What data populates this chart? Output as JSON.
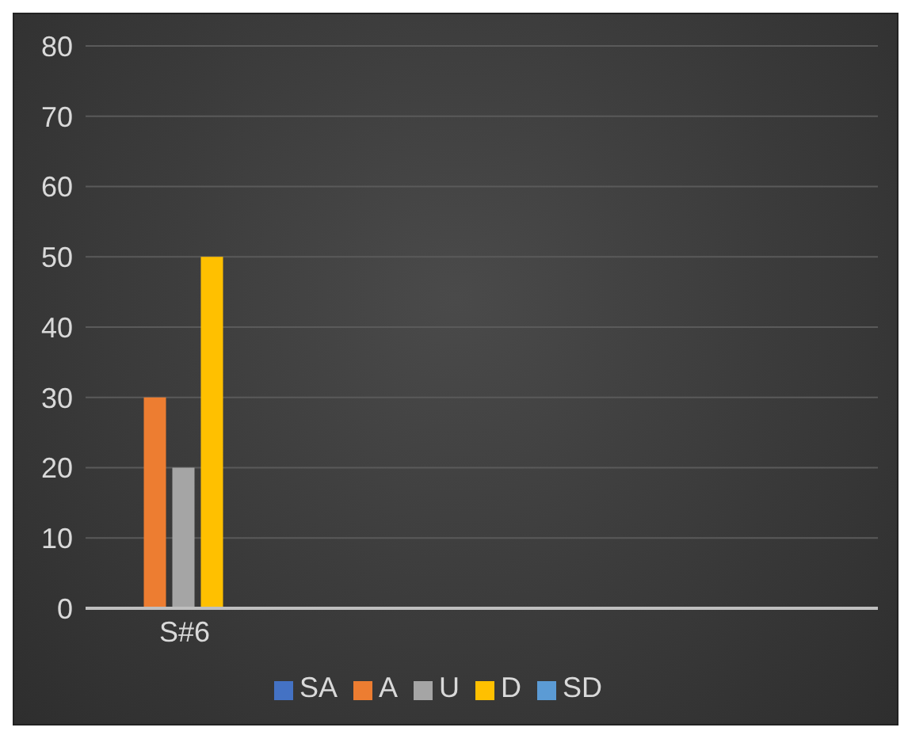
{
  "chart_data": {
    "type": "bar",
    "categories": [
      "S#6",
      null,
      null,
      null
    ],
    "series": [
      {
        "name": "SA",
        "color": "#4472c4",
        "values": [
          0,
          null,
          null,
          null
        ]
      },
      {
        "name": "A",
        "color": "#ed7d31",
        "values": [
          30,
          null,
          null,
          null
        ]
      },
      {
        "name": "U",
        "color": "#a5a5a5",
        "values": [
          20,
          null,
          null,
          null
        ]
      },
      {
        "name": "D",
        "color": "#ffc000",
        "values": [
          50,
          null,
          null,
          null
        ]
      },
      {
        "name": "SD",
        "color": "#5b9bd5",
        "values": [
          0,
          null,
          null,
          null
        ]
      }
    ],
    "ylim": [
      0,
      80
    ],
    "yticks": [
      0,
      10,
      20,
      30,
      40,
      50,
      60,
      70,
      80
    ],
    "grid": "y",
    "legend": "bottom"
  }
}
